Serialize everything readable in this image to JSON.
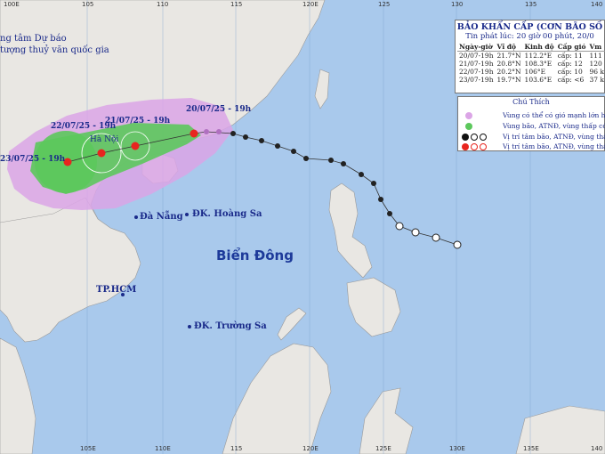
{
  "header": {
    "agency_line1": "ng tâm Dự báo",
    "agency_line2": "tượng thuỷ văn quốc gia"
  },
  "panel": {
    "title": "BẢO KHẨN CẤP (CƠN BÃO SỐ",
    "issued": "Tin phát lúc: 20 giờ 00 phút, 20/0",
    "headers": [
      "Ngày-giờ",
      "Vĩ độ",
      "Kinh độ",
      "Cấp gió",
      "Vm"
    ],
    "rows": [
      [
        "20/07-19h",
        "21.7°N",
        "112.2°E",
        "cấp: 11",
        "111"
      ],
      [
        "21/07-19h",
        "20.8°N",
        "108.3°E",
        "cấp: 12",
        "120"
      ],
      [
        "22/07-19h",
        "20.2°N",
        "106°E",
        "cấp: 10",
        "96 k"
      ],
      [
        "23/07-19h",
        "19.7°N",
        "103.6°E",
        "cấp: <6",
        "37 k"
      ]
    ]
  },
  "legend": {
    "title": "Chú Thích",
    "items": [
      "Vùng có thể có gió mạnh lớn hơn cấ",
      "Vùng bão, ATNĐ, vùng thấp có thể",
      "Vị trí tâm bão, ATNĐ, vùng thấp đã",
      "Vị trí tâm bão, ATNĐ, vùng thấp h"
    ],
    "colors": {
      "risk_zone": "#dba5e6",
      "storm_zone": "#5cc85c",
      "past": "#111111",
      "forecast": "#e8251f"
    }
  },
  "map_labels": {
    "sea": "Biển Đông",
    "hanoi": "Hà Nội",
    "danang": "Đà Nẵng",
    "hoangsa": "ĐK. Hoàng Sa",
    "hcm": "TP.HCM",
    "truongsa": "ĐK. Trường Sa"
  },
  "forecast_labels": [
    "20/07/25 - 19h",
    "21/07/25 - 19h",
    "22/07/25 - 19h",
    "23/07/25 - 19h"
  ],
  "axis": {
    "top": [
      "100E",
      "105",
      "110",
      "115",
      "120E",
      "125",
      "130",
      "135",
      "140"
    ],
    "bottom": [
      "105E",
      "110E",
      "115",
      "120E",
      "125E",
      "130E",
      "135E",
      "140"
    ]
  }
}
